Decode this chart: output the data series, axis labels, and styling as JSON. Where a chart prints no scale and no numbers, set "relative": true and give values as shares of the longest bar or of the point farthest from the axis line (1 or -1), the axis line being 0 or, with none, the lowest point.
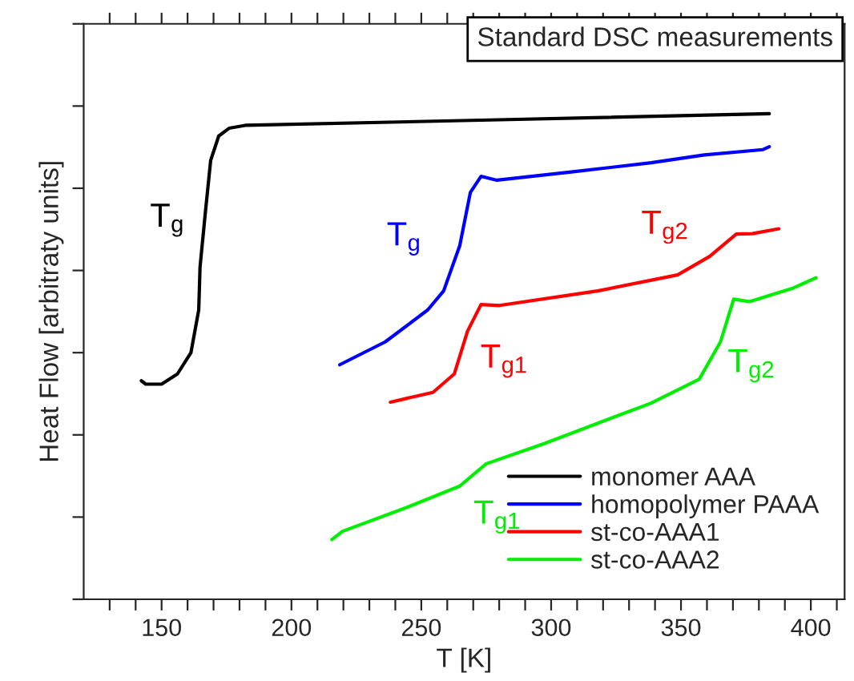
{
  "chart_data": {
    "type": "line",
    "title": "Standard DSC measurements",
    "xlabel": "T [K]",
    "ylabel": "Heat Flow [arbitraty units]",
    "relative": true,
    "tick_labels": "x",
    "grid": false,
    "legend": "bottom right",
    "line_style": "solid",
    "marker": "none",
    "xlim": [
      120,
      413
    ],
    "xticks": [
      {
        "value": 130,
        "label": null
      },
      {
        "value": 140,
        "label": null
      },
      150,
      {
        "value": 160,
        "label": null
      },
      {
        "value": 170,
        "label": null
      },
      {
        "value": 180,
        "label": null
      },
      {
        "value": 190,
        "label": null
      },
      200,
      {
        "value": 210,
        "label": null
      },
      {
        "value": 220,
        "label": null
      },
      {
        "value": 230,
        "label": null
      },
      {
        "value": 240,
        "label": null
      },
      250,
      {
        "value": 260,
        "label": null
      },
      {
        "value": 270,
        "label": null
      },
      {
        "value": 280,
        "label": null
      },
      {
        "value": 290,
        "label": null
      },
      300,
      {
        "value": 310,
        "label": null
      },
      {
        "value": 320,
        "label": null
      },
      {
        "value": 330,
        "label": null
      },
      {
        "value": 340,
        "label": null
      },
      350,
      {
        "value": 360,
        "label": null
      },
      {
        "value": 370,
        "label": null
      },
      {
        "value": 380,
        "label": null
      },
      {
        "value": 390,
        "label": null
      },
      400,
      {
        "value": 410,
        "label": null
      }
    ],
    "series": [
      {
        "name": "monomer AAA",
        "color": "#000000",
        "x": [
          142.2,
          143.9,
          150.0,
          156.1,
          161.3,
          164.3,
          164.8,
          166.8,
          168.9,
          172.0,
          176.0,
          182.2,
          276.4,
          384.0
        ],
        "values": [
          0.45,
          0.443,
          0.443,
          0.464,
          0.508,
          0.596,
          0.684,
          0.794,
          0.904,
          0.954,
          0.97,
          0.976,
          0.987,
          1.0
        ]
      },
      {
        "name": "homopolymer PAAA",
        "color": "#0000ff",
        "x": [
          218.6,
          236.1,
          252.5,
          258.6,
          264.8,
          268.9,
          273.0,
          279.1,
          307.8,
          338.5,
          359.0,
          381.6,
          384.0
        ],
        "values": [
          0.483,
          0.53,
          0.596,
          0.635,
          0.728,
          0.838,
          0.871,
          0.863,
          0.88,
          0.899,
          0.915,
          0.926,
          0.932
        ]
      },
      {
        "name": "st-co-AAA1",
        "color": "#ff0000",
        "x": [
          238.1,
          254.5,
          262.7,
          267.8,
          273.0,
          280.1,
          317.9,
          348.7,
          361.0,
          371.3,
          377.5,
          387.7
        ],
        "values": [
          0.406,
          0.426,
          0.464,
          0.552,
          0.607,
          0.605,
          0.635,
          0.668,
          0.706,
          0.752,
          0.753,
          0.763
        ]
      },
      {
        "name": "st-co-AAA2",
        "color": "#00ee00",
        "x": [
          215.6,
          219.7,
          244.3,
          264.8,
          275.0,
          297.5,
          338.5,
          357.0,
          365.2,
          370.3,
          376.4,
          392.8,
          402.0
        ],
        "values": [
          0.123,
          0.14,
          0.189,
          0.233,
          0.279,
          0.321,
          0.404,
          0.453,
          0.53,
          0.618,
          0.613,
          0.64,
          0.662
        ]
      }
    ],
    "annotations": [
      {
        "text": "T$_{g}$",
        "x": 166.8,
        "y": 0.794
      },
      {
        "text": "T$_{g}$",
        "x": 264.8,
        "y": 0.728
      },
      {
        "text": "T$_{g1}$",
        "x": 273.0,
        "y": 0.607
      },
      {
        "text": "T$_{g2}$",
        "x": 371.3,
        "y": 0.752
      },
      {
        "text": "T$_{g1}$",
        "x": 275.0,
        "y": 0.279
      },
      {
        "text": "T$_{g2}$",
        "x": 370.3,
        "y": 0.618
      }
    ]
  }
}
